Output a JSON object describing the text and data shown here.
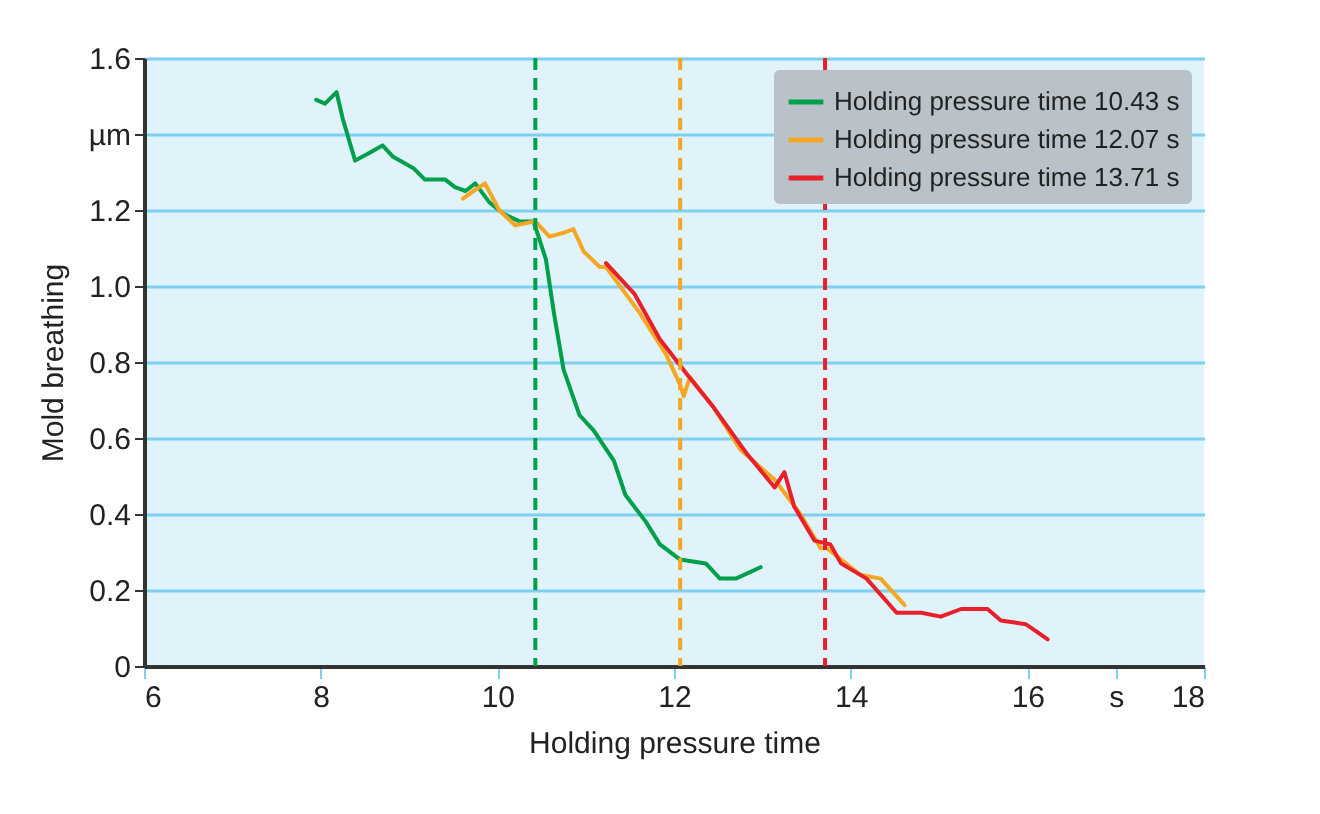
{
  "chart_data": {
    "type": "line",
    "xlabel": "Holding pressure time",
    "ylabel": "Mold breathing",
    "xlim": [
      6,
      18
    ],
    "xticks": [
      6,
      8,
      10,
      12,
      14,
      16,
      {
        "value": 17,
        "label": "s"
      },
      18
    ],
    "ylim": [
      0,
      1.6
    ],
    "yticks": [
      0,
      0.2,
      0.4,
      0.6,
      0.8,
      {
        "value": 1,
        "label": "1.0"
      },
      1.2,
      {
        "value": 1.4,
        "label": "µm"
      },
      1.6
    ],
    "grid": "y",
    "legend": "top right",
    "marker": "none",
    "series": [
      {
        "name": "Holding pressure time 10.43 s",
        "color": "#00a04a",
        "x": [
          7.95,
          8.05,
          8.18,
          8.25,
          8.39,
          8.55,
          8.7,
          8.82,
          9.05,
          9.18,
          9.41,
          9.52,
          9.64,
          9.75,
          9.91,
          10.07,
          10.25,
          10.41,
          10.48,
          10.55,
          10.64,
          10.75,
          10.93,
          11.09,
          11.32,
          11.45,
          11.68,
          11.84,
          12.07,
          12.36,
          12.52,
          12.7,
          12.98
        ],
        "values": [
          1.49,
          1.48,
          1.51,
          1.44,
          1.33,
          1.35,
          1.37,
          1.34,
          1.31,
          1.28,
          1.28,
          1.26,
          1.25,
          1.27,
          1.22,
          1.19,
          1.17,
          1.17,
          1.12,
          1.07,
          0.93,
          0.78,
          0.66,
          0.62,
          0.54,
          0.45,
          0.38,
          0.32,
          0.28,
          0.27,
          0.23,
          0.23,
          0.26
        ]
      },
      {
        "name": "Holding pressure time 12.07 s",
        "color": "#f5a623",
        "x": [
          9.61,
          9.73,
          9.86,
          10.02,
          10.2,
          10.43,
          10.59,
          10.75,
          10.86,
          10.98,
          11.16,
          11.23,
          11.61,
          11.91,
          12.07,
          12.11,
          12.18,
          12.45,
          12.75,
          13.14,
          13.43,
          13.66,
          13.73,
          14.11,
          14.34,
          14.61
        ],
        "values": [
          1.23,
          1.25,
          1.27,
          1.2,
          1.16,
          1.17,
          1.13,
          1.14,
          1.15,
          1.09,
          1.05,
          1.05,
          0.93,
          0.82,
          0.74,
          0.71,
          0.76,
          0.68,
          0.57,
          0.49,
          0.4,
          0.31,
          0.31,
          0.24,
          0.23,
          0.16
        ]
      },
      {
        "name": "Holding pressure time 13.71 s",
        "color": "#e8202a",
        "x": [
          11.23,
          11.55,
          11.84,
          12.14,
          12.45,
          12.82,
          13.14,
          13.25,
          13.36,
          13.59,
          13.77,
          13.89,
          14.18,
          14.52,
          14.8,
          15.02,
          15.25,
          15.55,
          15.7,
          15.98,
          16.11,
          16.23
        ],
        "values": [
          1.06,
          0.98,
          0.86,
          0.77,
          0.68,
          0.56,
          0.47,
          0.51,
          0.42,
          0.33,
          0.32,
          0.27,
          0.23,
          0.14,
          0.14,
          0.13,
          0.15,
          0.15,
          0.12,
          0.11,
          0.09,
          0.07
        ]
      }
    ],
    "ref_lines": [
      {
        "axis": "x",
        "value": 10.43,
        "color": "#00a04a",
        "line_style": "dashed"
      },
      {
        "axis": "x",
        "value": 12.07,
        "color": "#f5a623",
        "line_style": "dashed"
      },
      {
        "axis": "x",
        "value": 13.71,
        "color": "#e8202a",
        "line_style": "dashed"
      }
    ]
  }
}
